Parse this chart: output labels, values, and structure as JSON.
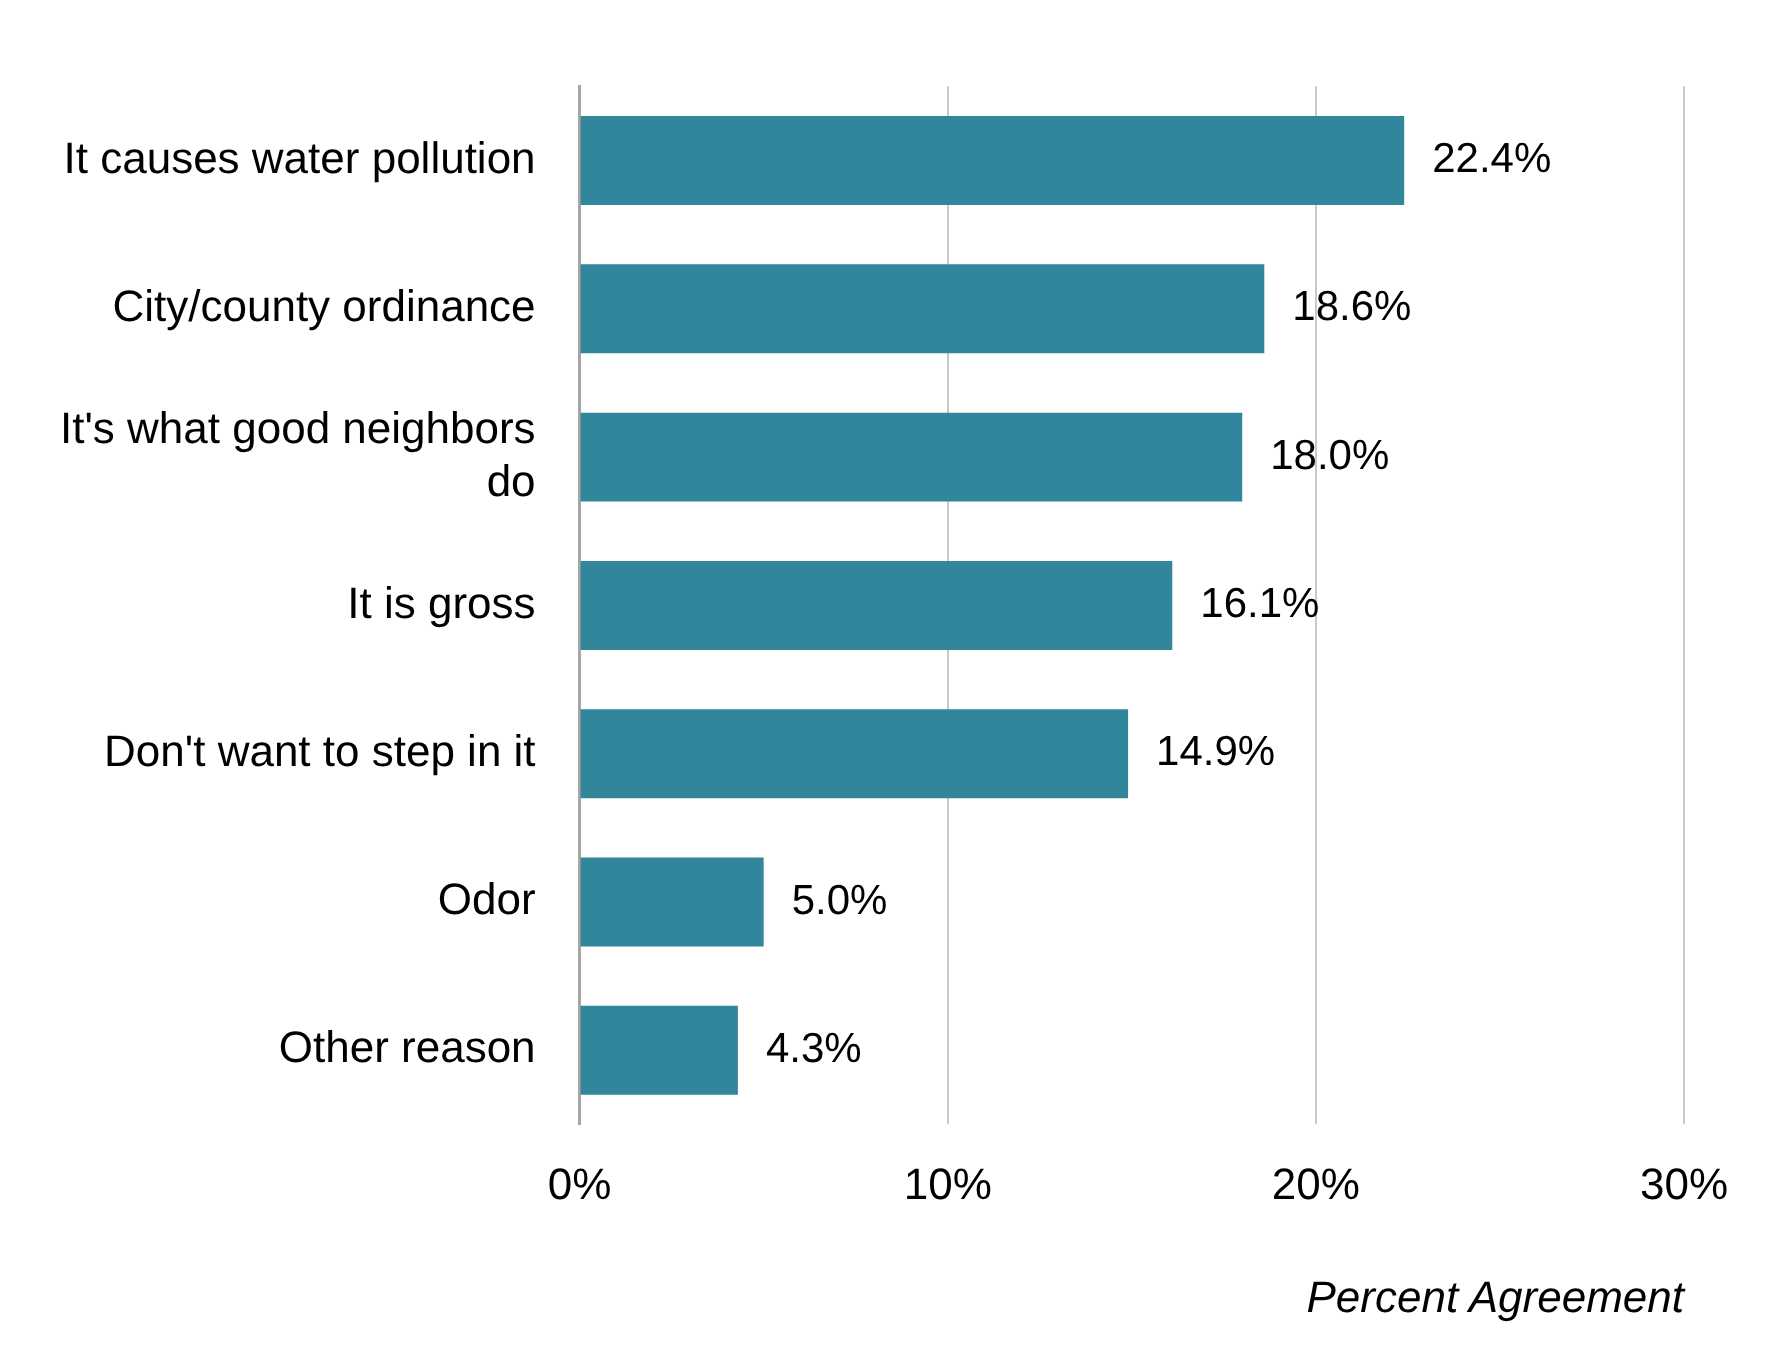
{
  "chart_data": {
    "type": "bar",
    "orientation": "horizontal",
    "xlabel": "Percent Agreement",
    "categories": [
      "It causes water pollution",
      "City/county ordinance",
      "It's what good neighbors do",
      "It is gross",
      "Don't want to step in it",
      "Odor",
      "Other reason"
    ],
    "values": [
      22.4,
      18.6,
      18.0,
      16.1,
      14.9,
      5.0,
      4.3
    ],
    "value_labels": [
      "22.4%",
      "18.6%",
      "18.0%",
      "16.1%",
      "14.9%",
      "5.0%",
      "4.3%"
    ],
    "color": "#31869b",
    "xlim": [
      0,
      30
    ],
    "xticks": [
      {
        "value": 0,
        "label": "0%"
      },
      {
        "value": 10,
        "label": "10%"
      },
      {
        "value": 20,
        "label": "20%"
      },
      {
        "value": 30,
        "label": "30%"
      }
    ],
    "grid": "x",
    "legend": false
  }
}
